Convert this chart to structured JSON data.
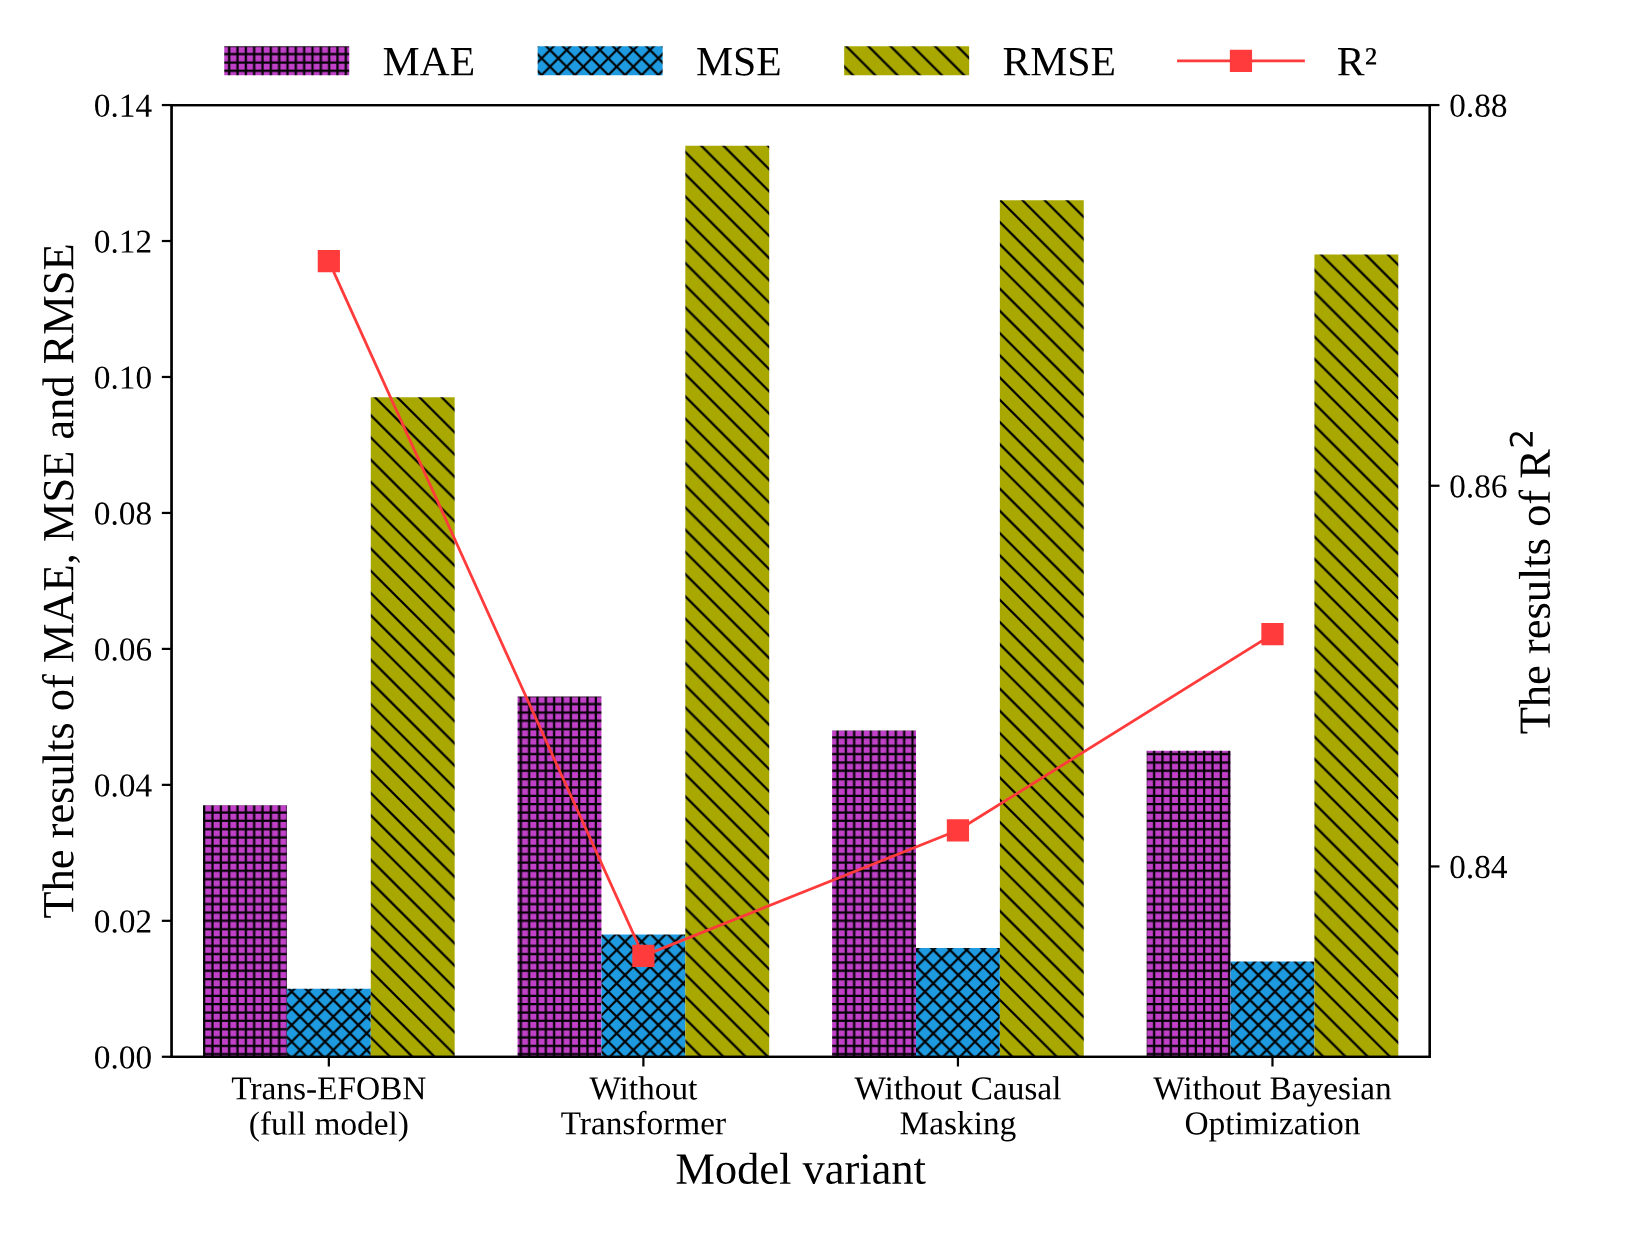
{
  "chart_data": {
    "type": "bar",
    "xlabel": "Model variant",
    "ylabel": "The results of MAE, MSE and RMSE",
    "y2label": "The results of R$^{2}$",
    "categories": [
      "Trans-EFOBN\n(full model)",
      "Without\nTransformer",
      "Without Causal\nMasking",
      "Without Bayesian\nOptimization"
    ],
    "series": [
      {
        "name": "MAE",
        "color": "#c040c8",
        "values": [
          0.037,
          0.053,
          0.048,
          0.045
        ]
      },
      {
        "name": "MSE",
        "color": "#1e9be0",
        "values": [
          0.01,
          0.018,
          0.016,
          0.014
        ]
      },
      {
        "name": "RMSE",
        "color": "#a8a800",
        "values": [
          0.097,
          0.134,
          0.126,
          0.118
        ]
      },
      {
        "name": "R²",
        "type": "line",
        "axis": "y2",
        "color": "#ff3b3b",
        "marker": "square",
        "values": [
          0.8718,
          0.8353,
          0.8419,
          0.8522
        ]
      }
    ],
    "ylim": [
      0,
      0.14
    ],
    "yticks": [
      {
        "value": 0,
        "label": "0.00"
      },
      {
        "value": 0.02,
        "label": "0.02"
      },
      {
        "value": 0.04,
        "label": "0.04"
      },
      {
        "value": 0.06,
        "label": "0.06"
      },
      {
        "value": 0.08,
        "label": "0.08"
      },
      {
        "value": 0.1,
        "label": "0.10"
      },
      {
        "value": 0.12,
        "label": "0.12"
      },
      {
        "value": 0.14,
        "label": "0.14"
      }
    ],
    "y2lim": [
      0.83,
      0.88
    ],
    "y2ticks": [
      0.84,
      0.86,
      0.88
    ],
    "grid": false,
    "legend": "top"
  }
}
